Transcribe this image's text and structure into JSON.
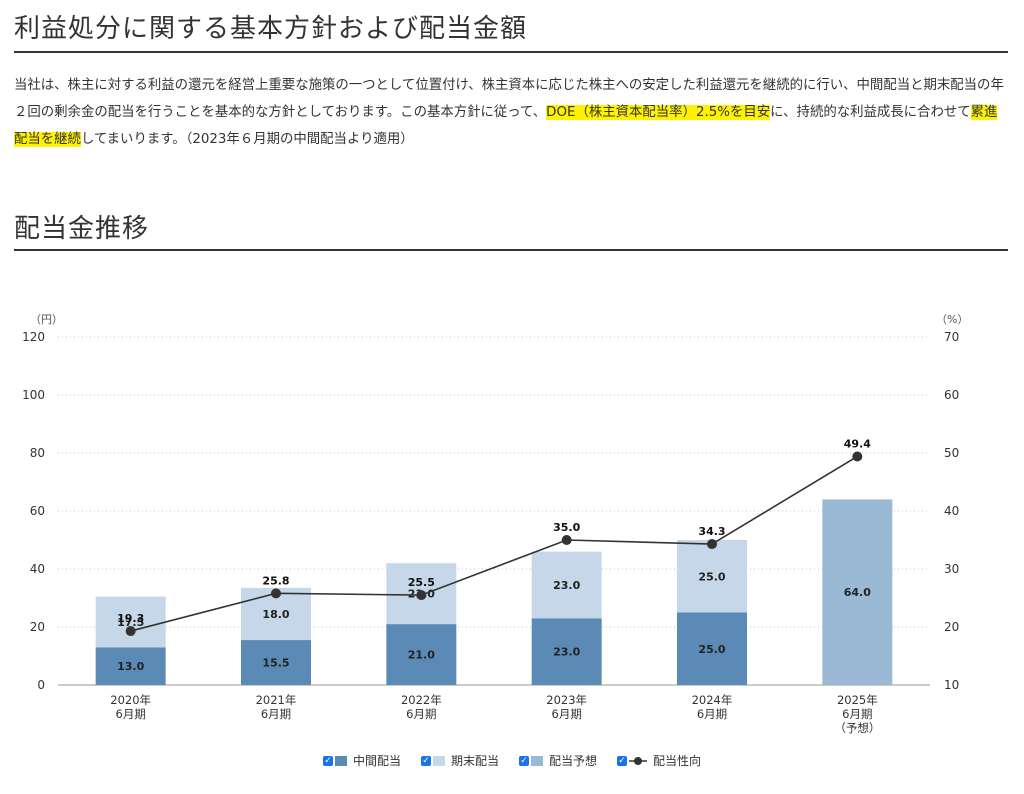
{
  "page": {
    "title": "利益処分に関する基本方針および配当金額",
    "policy_text_1": "当社は、株主に対する利益の還元を経営上重要な施策の一つとして位置付け、株主資本に応じた株主への安定した利益還元を継続的に行い、中間配当と期末配当の年２回の剰余金の配当を行うことを基本的な方針としております。この基本方針に従って、",
    "policy_highlight_1": "DOE（株主資本配当率）2.5%を目安",
    "policy_text_2": "に、持続的な利益成長に合わせて",
    "policy_highlight_2": "累進配当を継続",
    "policy_text_3": "してまいります。（2023年６月期の中間配当より適用）",
    "section_title": "配当金推移"
  },
  "chart_data": {
    "type": "bar",
    "stacked": true,
    "categories": [
      [
        "2020年",
        "6月期"
      ],
      [
        "2021年",
        "6月期"
      ],
      [
        "2022年",
        "6月期"
      ],
      [
        "2023年",
        "6月期"
      ],
      [
        "2024年",
        "6月期"
      ],
      [
        "2025年",
        "6月期",
        "（予想）"
      ]
    ],
    "left_axis": {
      "unit": "（円）",
      "min": 0,
      "max": 120,
      "ticks": [
        0,
        20,
        40,
        60,
        80,
        100,
        120
      ]
    },
    "right_axis": {
      "unit": "（%）",
      "min": 10,
      "max": 70,
      "ticks": [
        10,
        20,
        30,
        40,
        50,
        60,
        70
      ]
    },
    "series": [
      {
        "name": "中間配当",
        "kind": "bar",
        "axis": "left",
        "color": "#5b8ab7",
        "values": [
          13.0,
          15.5,
          21.0,
          23.0,
          25.0,
          null
        ],
        "labels": [
          "13.0",
          "15.5",
          "21.0",
          "23.0",
          "25.0",
          ""
        ]
      },
      {
        "name": "期末配当",
        "kind": "bar",
        "axis": "left",
        "color": "#c5d7e8",
        "values": [
          17.5,
          18.0,
          21.0,
          23.0,
          25.0,
          null
        ],
        "labels": [
          "17.5",
          "18.0",
          "21.0",
          "23.0",
          "25.0",
          ""
        ]
      },
      {
        "name": "配当予想",
        "kind": "bar",
        "axis": "left",
        "color": "#9ab9d5",
        "values": [
          null,
          null,
          null,
          null,
          null,
          64.0
        ],
        "labels": [
          "",
          "",
          "",
          "",
          "",
          "64.0"
        ]
      },
      {
        "name": "配当性向",
        "kind": "line",
        "axis": "right",
        "color": "#333333",
        "values": [
          19.3,
          25.8,
          25.5,
          35.0,
          34.3,
          49.4
        ],
        "labels": [
          "19.3",
          "25.8",
          "25.5",
          "35.0",
          "34.3",
          "49.4"
        ]
      }
    ],
    "grid": true,
    "legend_position": "bottom-center",
    "legend_check_color": "#1a73e8"
  }
}
